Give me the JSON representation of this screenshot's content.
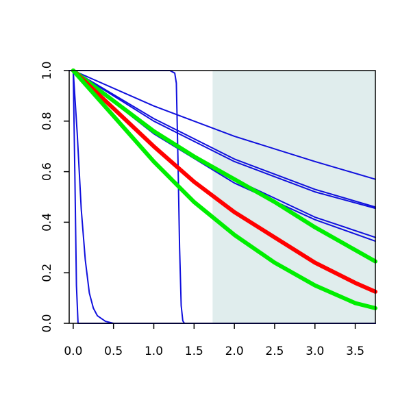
{
  "chart_data": {
    "type": "line",
    "title": "",
    "xlabel": "",
    "ylabel": "",
    "xlim": [
      -0.05,
      3.75
    ],
    "ylim": [
      0,
      1
    ],
    "x_ticks": [
      0.0,
      0.5,
      1.0,
      1.5,
      2.0,
      2.5,
      3.0,
      3.5
    ],
    "x_tick_labels": [
      "0.0",
      "0.5",
      "1.0",
      "1.5",
      "2.0",
      "2.5",
      "3.0",
      "3.5"
    ],
    "y_ticks": [
      0.0,
      0.2,
      0.4,
      0.6,
      0.8,
      1.0
    ],
    "y_tick_labels": [
      "0.0",
      "0.2",
      "0.4",
      "0.6",
      "0.8",
      "1.0"
    ],
    "grid": false,
    "shaded_region": {
      "x_start": 1.73,
      "x_end": 3.75,
      "color": "#e0eded"
    },
    "series": [
      {
        "color": "#1010dd",
        "width": "thin",
        "x": [
          0,
          1,
          2,
          3,
          3.75
        ],
        "y": [
          1.0,
          0.86,
          0.74,
          0.64,
          0.57
        ]
      },
      {
        "color": "#1010dd",
        "width": "thin",
        "x": [
          0,
          1,
          2,
          3,
          3.75
        ],
        "y": [
          1.0,
          0.81,
          0.65,
          0.53,
          0.46
        ]
      },
      {
        "color": "#1010dd",
        "width": "thin",
        "x": [
          0,
          1,
          2,
          3,
          3.75
        ],
        "y": [
          1.0,
          0.8,
          0.64,
          0.52,
          0.455
        ]
      },
      {
        "color": "#1010dd",
        "width": "thin",
        "x": [
          0,
          1,
          2,
          3,
          3.75
        ],
        "y": [
          1.0,
          0.76,
          0.57,
          0.42,
          0.34
        ]
      },
      {
        "color": "#1010dd",
        "width": "thin",
        "x": [
          0,
          1,
          2,
          3,
          3.75
        ],
        "y": [
          1.0,
          0.75,
          0.555,
          0.41,
          0.325
        ]
      },
      {
        "color": "#00ee00",
        "width": "thick",
        "x": [
          0,
          0.5,
          1,
          1.5,
          2,
          2.5,
          3,
          3.5,
          3.75
        ],
        "y": [
          1.0,
          0.88,
          0.76,
          0.66,
          0.57,
          0.48,
          0.38,
          0.29,
          0.245
        ]
      },
      {
        "color": "#ff0000",
        "width": "thick",
        "x": [
          0,
          0.5,
          1,
          1.5,
          2,
          2.5,
          3,
          3.5,
          3.75
        ],
        "y": [
          1.0,
          0.85,
          0.7,
          0.56,
          0.44,
          0.34,
          0.24,
          0.16,
          0.125
        ]
      },
      {
        "color": "#00ee00",
        "width": "thick",
        "x": [
          0,
          0.5,
          1,
          1.5,
          2,
          2.5,
          3,
          3.5,
          3.75
        ],
        "y": [
          1.0,
          0.82,
          0.64,
          0.48,
          0.35,
          0.24,
          0.15,
          0.08,
          0.06
        ]
      },
      {
        "color": "#1010dd",
        "width": "thin",
        "x": [
          -0.05,
          0.0,
          0.02,
          0.04,
          0.06,
          3.75
        ],
        "y": [
          1.0,
          1.0,
          0.6,
          0.15,
          0.0,
          0.0
        ]
      },
      {
        "color": "#1010dd",
        "width": "thin",
        "x": [
          -0.05,
          0.0,
          0.05,
          0.1,
          0.15,
          0.2,
          0.25,
          0.3,
          0.4,
          0.5,
          3.75
        ],
        "y": [
          1.0,
          1.0,
          0.75,
          0.45,
          0.25,
          0.12,
          0.06,
          0.03,
          0.008,
          0.0,
          0.0
        ]
      },
      {
        "color": "#1010dd",
        "width": "thin",
        "x": [
          -0.05,
          1.2,
          1.26,
          1.28,
          1.3,
          1.32,
          1.34,
          1.36,
          1.38,
          3.75
        ],
        "y": [
          1.0,
          1.0,
          0.99,
          0.95,
          0.65,
          0.3,
          0.07,
          0.01,
          0.0,
          0.0
        ]
      }
    ]
  }
}
